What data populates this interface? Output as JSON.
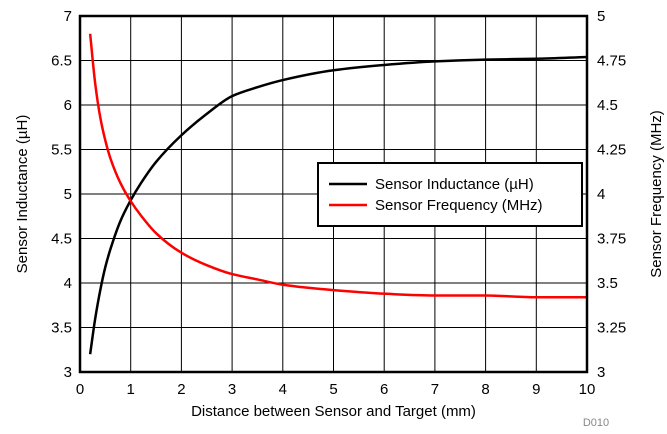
{
  "chart_data": {
    "type": "line",
    "xlabel": "Distance between Sensor and Target (mm)",
    "ylabel_left": "Sensor Inductance (µH)",
    "ylabel_right": "Sensor Frequency (MHz)",
    "footnote": "D010",
    "xlim": [
      0,
      10
    ],
    "ylim_left": [
      3,
      7
    ],
    "ylim_right": [
      3,
      5
    ],
    "x_ticks": [
      "0",
      "1",
      "2",
      "3",
      "4",
      "5",
      "6",
      "7",
      "8",
      "9",
      "10"
    ],
    "y_left_ticks": [
      "3",
      "3.5",
      "4",
      "4.5",
      "5",
      "5.5",
      "6",
      "6.5",
      "7"
    ],
    "y_right_ticks": [
      "3",
      "3.25",
      "3.5",
      "3.75",
      "4",
      "4.25",
      "4.5",
      "4.75",
      "5"
    ],
    "grid": true,
    "legend_position": "center-right",
    "series": [
      {
        "name": "Sensor Inductance (µH)",
        "axis": "left",
        "color": "#000000",
        "x": [
          0.2,
          0.3,
          0.4,
          0.5,
          0.6,
          0.8,
          1.0,
          1.2,
          1.5,
          2.0,
          2.5,
          3.0,
          3.5,
          4.0,
          5.0,
          6.0,
          7.0,
          8.0,
          9.0,
          10.0
        ],
        "values": [
          3.2,
          3.6,
          3.92,
          4.18,
          4.38,
          4.7,
          4.93,
          5.12,
          5.36,
          5.66,
          5.9,
          6.1,
          6.2,
          6.28,
          6.39,
          6.45,
          6.49,
          6.51,
          6.52,
          6.54
        ]
      },
      {
        "name": "Sensor Frequency (MHz)",
        "axis": "right",
        "color": "#ff0000",
        "x": [
          0.2,
          0.3,
          0.4,
          0.5,
          0.6,
          0.8,
          1.0,
          1.2,
          1.5,
          2.0,
          2.5,
          3.0,
          3.5,
          4.0,
          5.0,
          6.0,
          7.0,
          8.0,
          9.0,
          10.0
        ],
        "values": [
          4.9,
          4.62,
          4.43,
          4.3,
          4.2,
          4.06,
          3.96,
          3.88,
          3.78,
          3.67,
          3.6,
          3.55,
          3.52,
          3.49,
          3.46,
          3.44,
          3.43,
          3.43,
          3.42,
          3.42
        ]
      }
    ]
  }
}
